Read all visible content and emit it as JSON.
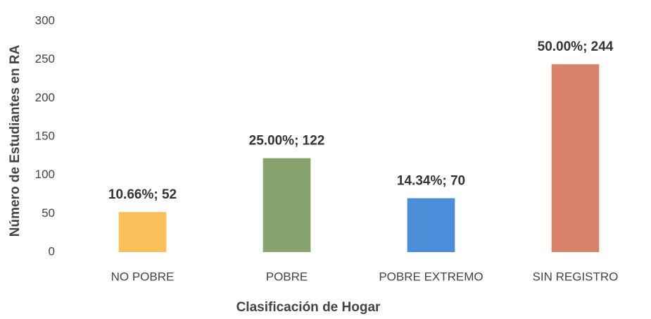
{
  "chart_data": {
    "type": "bar",
    "x_label": "Clasificación de Hogar",
    "y_label": "Número de Estudiantes en RA",
    "categories": [
      "NO POBRE",
      "POBRE",
      "POBRE EXTREMO",
      "SIN REGISTRO"
    ],
    "values": [
      52,
      122,
      70,
      244
    ],
    "value_labels": [
      "10.66%; 52",
      "25.00%; 122",
      "14.34%; 70",
      "50.00%; 244"
    ],
    "colors": [
      "#f9c05a",
      "#86a36c",
      "#4a8ed9",
      "#d8826c"
    ],
    "ylim": [
      0,
      300
    ],
    "yticks": [
      0,
      50,
      100,
      150,
      200,
      250,
      300
    ],
    "grid": false
  }
}
